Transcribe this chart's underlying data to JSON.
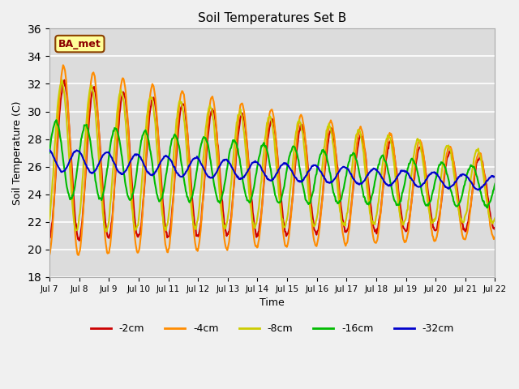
{
  "title": "Soil Temperatures Set B",
  "xlabel": "Time",
  "ylabel": "Soil Temperature (C)",
  "ylim": [
    18,
    36
  ],
  "yticks": [
    18,
    20,
    22,
    24,
    26,
    28,
    30,
    32,
    34,
    36
  ],
  "annotation": "BA_met",
  "fig_bg_color": "#f0f0f0",
  "plot_bg_color": "#dcdcdc",
  "colors": {
    "-2cm": "#cc0000",
    "-4cm": "#ff8c00",
    "-8cm": "#cccc00",
    "-16cm": "#00bb00",
    "-32cm": "#0000cc"
  },
  "days": 15,
  "pts_per_day": 48
}
